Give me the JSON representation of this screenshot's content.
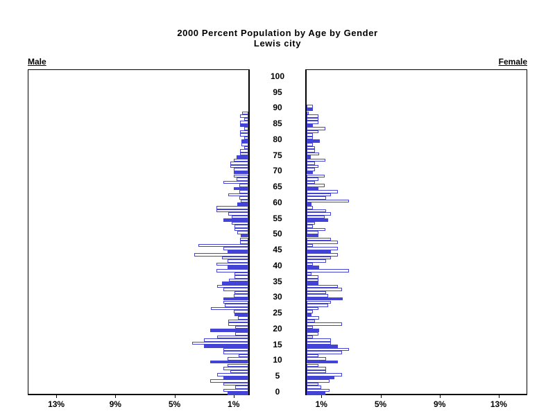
{
  "title": {
    "line1": "2000 Percent Population by Age by Gender",
    "line2": "Lewis city"
  },
  "panels": {
    "male_label": "Male",
    "female_label": "Female"
  },
  "chart_data": {
    "type": "bar",
    "subtype": "population-pyramid",
    "title": "2000 Percent Population by Age by Gender",
    "subtitle": "Lewis city",
    "unit": "percent of total population, single year of age",
    "bar_fill_rule": "ages divisible by 5 are solid blue; other ages are white with blue outline",
    "legend_position": "none",
    "grid": false,
    "colors": {
      "bar_blue": "#4343d6",
      "axis_black": "#000000",
      "background": "#ffffff"
    },
    "x_axis": {
      "tick_values": [
        1,
        5,
        9,
        13
      ],
      "male_tick_labels": [
        "13%",
        "9%",
        "5%",
        "1%"
      ],
      "female_tick_labels": [
        "1%",
        "5%",
        "9%",
        "13%"
      ],
      "max_percent": 15
    },
    "age_axis": {
      "min": 0,
      "max": 100,
      "tick_step": 5,
      "tick_labels": [
        "0",
        "5",
        "10",
        "15",
        "20",
        "25",
        "30",
        "35",
        "40",
        "45",
        "50",
        "55",
        "60",
        "65",
        "70",
        "75",
        "80",
        "85",
        "90",
        "95",
        "100"
      ]
    },
    "series": [
      {
        "name": "Male",
        "ages_start": 0,
        "values": [
          1.4,
          1.7,
          0.9,
          1.7,
          2.6,
          1.7,
          2.1,
          1.2,
          1.7,
          1.4,
          2.6,
          1.4,
          0.65,
          1.7,
          1.7,
          3.0,
          3.8,
          3.0,
          2.1,
          0.9,
          2.6,
          0.9,
          1.35,
          1.35,
          0.7,
          0.95,
          1.0,
          2.55,
          1.6,
          1.7,
          1.7,
          1.0,
          0.95,
          1.7,
          2.1,
          1.8,
          1.3,
          0.95,
          0.95,
          2.15,
          1.4,
          2.15,
          1.4,
          1.77,
          3.65,
          1.4,
          1.7,
          3.4,
          0.55,
          0.55,
          0.5,
          0.73,
          0.95,
          0.95,
          1.15,
          1.7,
          1.15,
          1.35,
          2.15,
          2.15,
          0.73,
          0.5,
          0.63,
          1.35,
          0.63,
          1.0,
          0.63,
          1.7,
          0.8,
          1.0,
          1.0,
          1.0,
          1.2,
          1.2,
          1.0,
          0.8,
          0.55,
          0.55,
          0.3,
          0.45,
          0.45,
          0.3,
          0.55,
          0.55,
          0.3,
          0.55,
          0.55,
          0.3,
          0.55,
          0.4
        ]
      },
      {
        "name": "Female",
        "ages_start": 0,
        "values": [
          1.25,
          1.55,
          1.0,
          0.8,
          1.55,
          1.9,
          2.4,
          1.3,
          1.3,
          0.8,
          2.1,
          1.3,
          0.8,
          2.4,
          2.85,
          2.1,
          1.65,
          1.65,
          0.4,
          0.8,
          0.85,
          0.4,
          2.4,
          0.55,
          0.85,
          0.35,
          0.4,
          0.8,
          1.45,
          1.65,
          2.45,
          1.45,
          1.3,
          2.4,
          2.1,
          0.8,
          0.8,
          0.8,
          0.35,
          2.85,
          0.85,
          0.4,
          1.3,
          1.65,
          2.1,
          1.65,
          2.1,
          0.4,
          2.1,
          1.65,
          0.8,
          0.8,
          1.25,
          0.4,
          0.55,
          1.45,
          1.2,
          1.65,
          1.3,
          0.4,
          0.35,
          2.85,
          1.3,
          1.65,
          2.1,
          0.8,
          1.2,
          0.55,
          0.8,
          1.2,
          0.4,
          0.55,
          0.8,
          0.55,
          1.25,
          0.3,
          0.83,
          0.55,
          0.55,
          0.42,
          0.9,
          0.42,
          0.42,
          0.8,
          1.25,
          0.42,
          0.8,
          0.8,
          0.8,
          0.15,
          0.42,
          0.42
        ]
      }
    ]
  }
}
